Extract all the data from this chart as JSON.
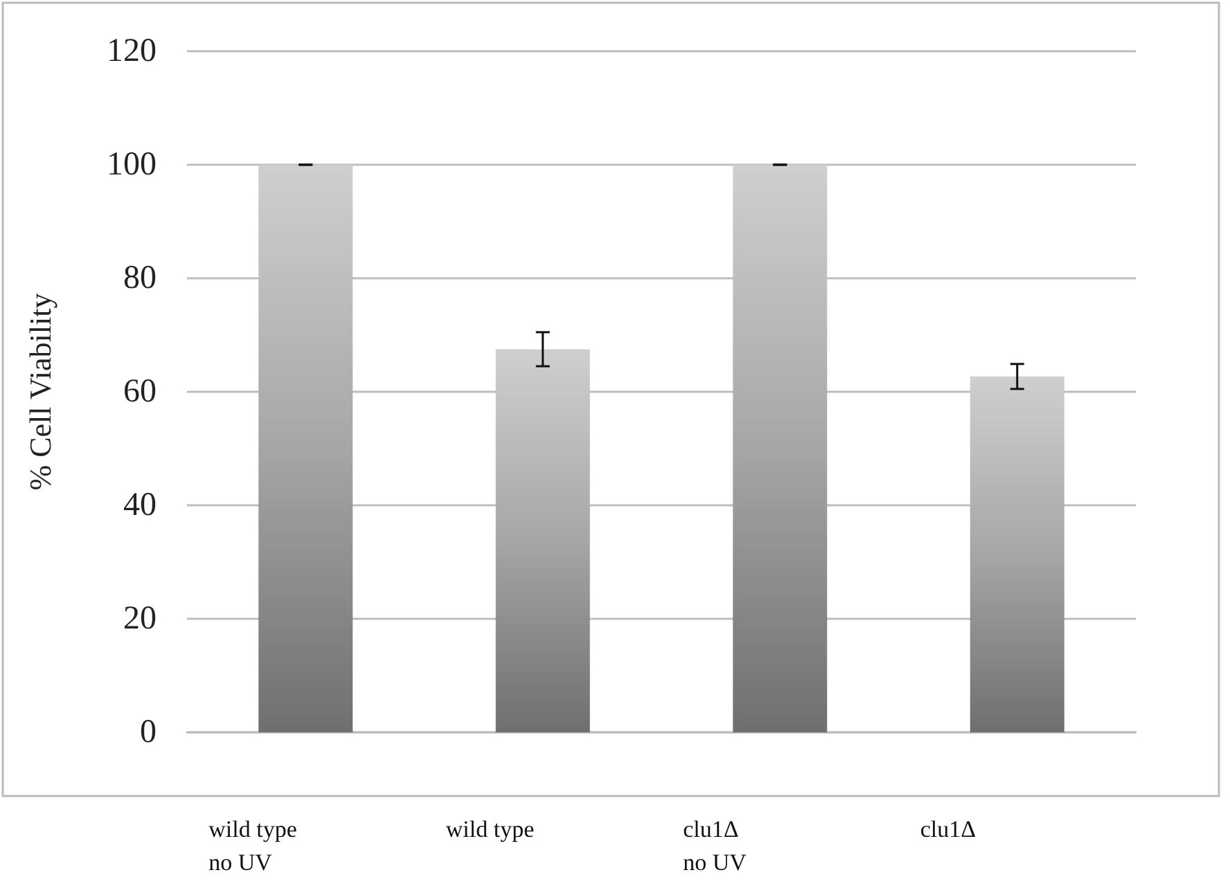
{
  "chart_data": {
    "type": "bar",
    "ylabel": "% Cell Viability",
    "categories": [
      "wild type\nno UV",
      "wild type",
      "clu1Δ\nno UV",
      "clu1Δ"
    ],
    "values": [
      100,
      67.5,
      100,
      62.7
    ],
    "errors": [
      0,
      3,
      0,
      2.2
    ],
    "color": "#a6a6a6",
    "ylim": [
      0,
      120
    ],
    "yticks": [
      0,
      20,
      40,
      60,
      80,
      100,
      120
    ],
    "grid": "y"
  }
}
